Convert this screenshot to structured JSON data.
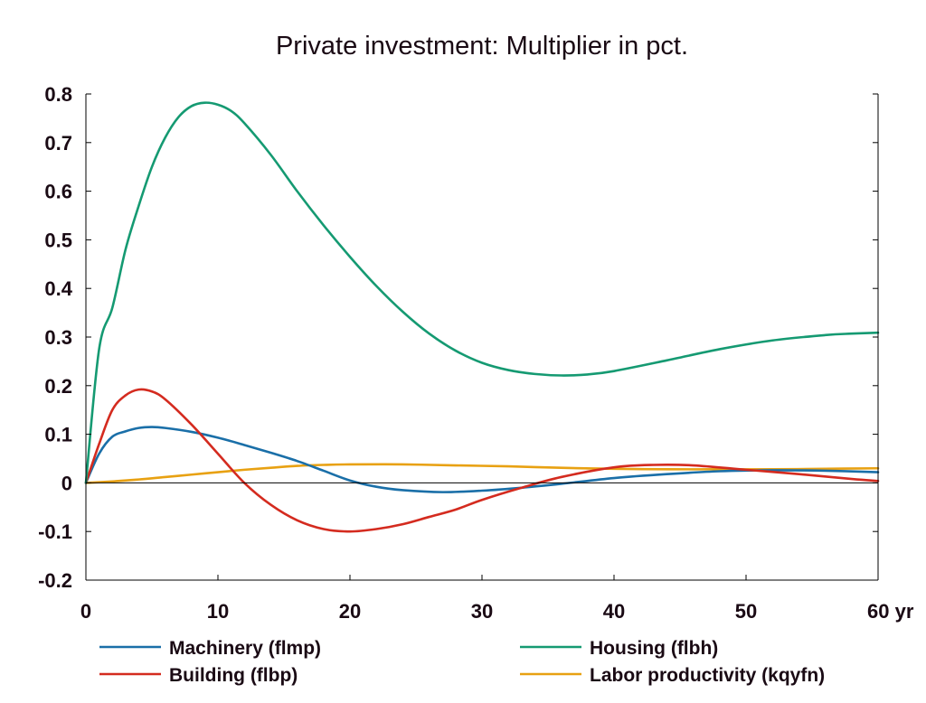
{
  "chart_data": {
    "type": "line",
    "title": "Private investment: Multiplier in pct.",
    "xlim": [
      0,
      60
    ],
    "ylim": [
      -0.2,
      0.8
    ],
    "x_ticks": [
      0,
      10,
      20,
      30,
      40,
      50,
      60
    ],
    "x_tick_labels": [
      "0",
      "10",
      "20",
      "30",
      "40",
      "50",
      "60 yr"
    ],
    "y_ticks": [
      -0.2,
      -0.1,
      0,
      0.1,
      0.2,
      0.3,
      0.4,
      0.5,
      0.6,
      0.7,
      0.8
    ],
    "y_tick_labels": [
      "-0.2",
      "-0.1",
      "0",
      "0.1",
      "0.2",
      "0.3",
      "0.4",
      "0.5",
      "0.6",
      "0.7",
      "0.8"
    ],
    "grid": false,
    "zero_line": true,
    "legend_position": "bottom",
    "series": [
      {
        "name": "Machinery (flmp)",
        "color": "#1a6fa8",
        "x": [
          0,
          1,
          2,
          3,
          4,
          5,
          6,
          8,
          10,
          12,
          14,
          16,
          18,
          20,
          22,
          24,
          27,
          30,
          33,
          36,
          40,
          44,
          48,
          52,
          56,
          60
        ],
        "y": [
          0,
          0.06,
          0.095,
          0.106,
          0.113,
          0.115,
          0.113,
          0.105,
          0.093,
          0.078,
          0.062,
          0.045,
          0.025,
          0.005,
          -0.008,
          -0.015,
          -0.019,
          -0.016,
          -0.01,
          -0.002,
          0.01,
          0.018,
          0.024,
          0.026,
          0.025,
          0.022
        ]
      },
      {
        "name": "Building (flbp)",
        "color": "#d42b1f",
        "x": [
          0,
          1,
          2,
          3,
          4,
          5,
          6,
          8,
          10,
          12,
          14,
          16,
          18,
          20,
          22,
          24,
          26,
          28,
          30,
          33,
          36,
          40,
          43,
          46,
          50,
          54,
          58,
          60
        ],
        "y": [
          0,
          0.08,
          0.15,
          0.18,
          0.192,
          0.188,
          0.172,
          0.12,
          0.06,
          0.0,
          -0.045,
          -0.077,
          -0.095,
          -0.1,
          -0.095,
          -0.085,
          -0.07,
          -0.055,
          -0.035,
          -0.01,
          0.012,
          0.032,
          0.037,
          0.036,
          0.027,
          0.018,
          0.008,
          0.004
        ]
      },
      {
        "name": "Housing (flbh)",
        "color": "#159a72",
        "x": [
          0,
          1,
          2,
          3,
          4,
          5,
          6,
          7,
          8,
          9,
          10,
          11,
          12,
          14,
          16,
          18,
          20,
          22,
          24,
          26,
          28,
          30,
          32,
          34,
          36,
          38,
          40,
          44,
          48,
          52,
          56,
          58,
          60
        ],
        "y": [
          0,
          0.275,
          0.36,
          0.48,
          0.57,
          0.65,
          0.71,
          0.752,
          0.775,
          0.782,
          0.778,
          0.765,
          0.74,
          0.675,
          0.6,
          0.53,
          0.465,
          0.405,
          0.352,
          0.307,
          0.272,
          0.247,
          0.232,
          0.224,
          0.221,
          0.223,
          0.23,
          0.252,
          0.275,
          0.293,
          0.304,
          0.307,
          0.309
        ]
      },
      {
        "name": "Labor productivity (kqyfn)",
        "color": "#e8a112",
        "x": [
          0,
          2,
          4,
          6,
          8,
          10,
          12,
          14,
          16,
          18,
          20,
          24,
          28,
          32,
          36,
          40,
          44,
          48,
          52,
          56,
          60
        ],
        "y": [
          0,
          0.003,
          0.007,
          0.012,
          0.017,
          0.022,
          0.027,
          0.031,
          0.035,
          0.037,
          0.038,
          0.038,
          0.036,
          0.034,
          0.031,
          0.029,
          0.028,
          0.028,
          0.028,
          0.029,
          0.03
        ]
      }
    ]
  }
}
